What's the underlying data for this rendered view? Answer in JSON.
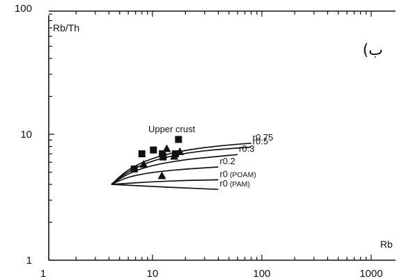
{
  "chart_data": {
    "type": "scatter",
    "xscale": "log",
    "yscale": "log",
    "xlim": [
      1,
      1500
    ],
    "ylim": [
      1,
      100
    ],
    "xlabel": "Rb",
    "ylabel": "Rb/Th",
    "xticks": [
      1,
      10,
      100,
      1000
    ],
    "yticks": [
      1,
      10,
      100
    ],
    "grid": false,
    "panel_label": "(ب",
    "annotation": "Upper crust",
    "reference_point": {
      "x": 4.2,
      "y": 4.0
    },
    "curves": [
      {
        "name": "r0.75",
        "name_main": "r0.75",
        "name_sub": "",
        "points": [
          [
            4.2,
            4.0
          ],
          [
            6,
            5.3
          ],
          [
            10,
            6.5
          ],
          [
            20,
            7.5
          ],
          [
            40,
            8.1
          ],
          [
            80,
            8.5
          ]
        ]
      },
      {
        "name": "r0.5",
        "name_main": "r0.5",
        "name_sub": "",
        "points": [
          [
            4.2,
            4.0
          ],
          [
            6,
            5.1
          ],
          [
            10,
            6.2
          ],
          [
            20,
            7.1
          ],
          [
            40,
            7.6
          ],
          [
            80,
            7.9
          ]
        ]
      },
      {
        "name": "r0.3",
        "name_main": "r0.3",
        "name_sub": "",
        "points": [
          [
            4.2,
            4.0
          ],
          [
            6,
            4.9
          ],
          [
            10,
            5.7
          ],
          [
            20,
            6.3
          ],
          [
            35,
            6.6
          ],
          [
            60,
            6.9
          ]
        ]
      },
      {
        "name": "r0.2",
        "name_main": "r0.2",
        "name_sub": "",
        "points": [
          [
            4.2,
            4.0
          ],
          [
            6,
            4.6
          ],
          [
            10,
            5.0
          ],
          [
            20,
            5.3
          ],
          [
            40,
            5.5
          ]
        ]
      },
      {
        "name": "r0 (POAM)",
        "name_main": "r0",
        "name_sub": "(POAM)",
        "points": [
          [
            4.2,
            4.0
          ],
          [
            10,
            4.2
          ],
          [
            20,
            4.3
          ],
          [
            40,
            4.35
          ]
        ]
      },
      {
        "name": "r0 (PAM)",
        "name_main": "r0",
        "name_sub": "(PAM)",
        "points": [
          [
            4.2,
            4.0
          ],
          [
            10,
            3.85
          ],
          [
            20,
            3.75
          ],
          [
            40,
            3.65
          ]
        ]
      }
    ],
    "series": [
      {
        "marker": "square",
        "points": [
          [
            6.8,
            5.3
          ],
          [
            8,
            7.0
          ],
          [
            10.2,
            7.5
          ],
          [
            12.3,
            7.0
          ],
          [
            12.5,
            6.6
          ],
          [
            16.2,
            7.0
          ],
          [
            17.3,
            9.1
          ]
        ]
      },
      {
        "marker": "triangle",
        "points": [
          [
            8.3,
            5.8
          ],
          [
            12.2,
            4.7
          ],
          [
            13.5,
            7.7
          ],
          [
            15.8,
            6.7
          ],
          [
            17.8,
            7.3
          ]
        ]
      }
    ]
  }
}
